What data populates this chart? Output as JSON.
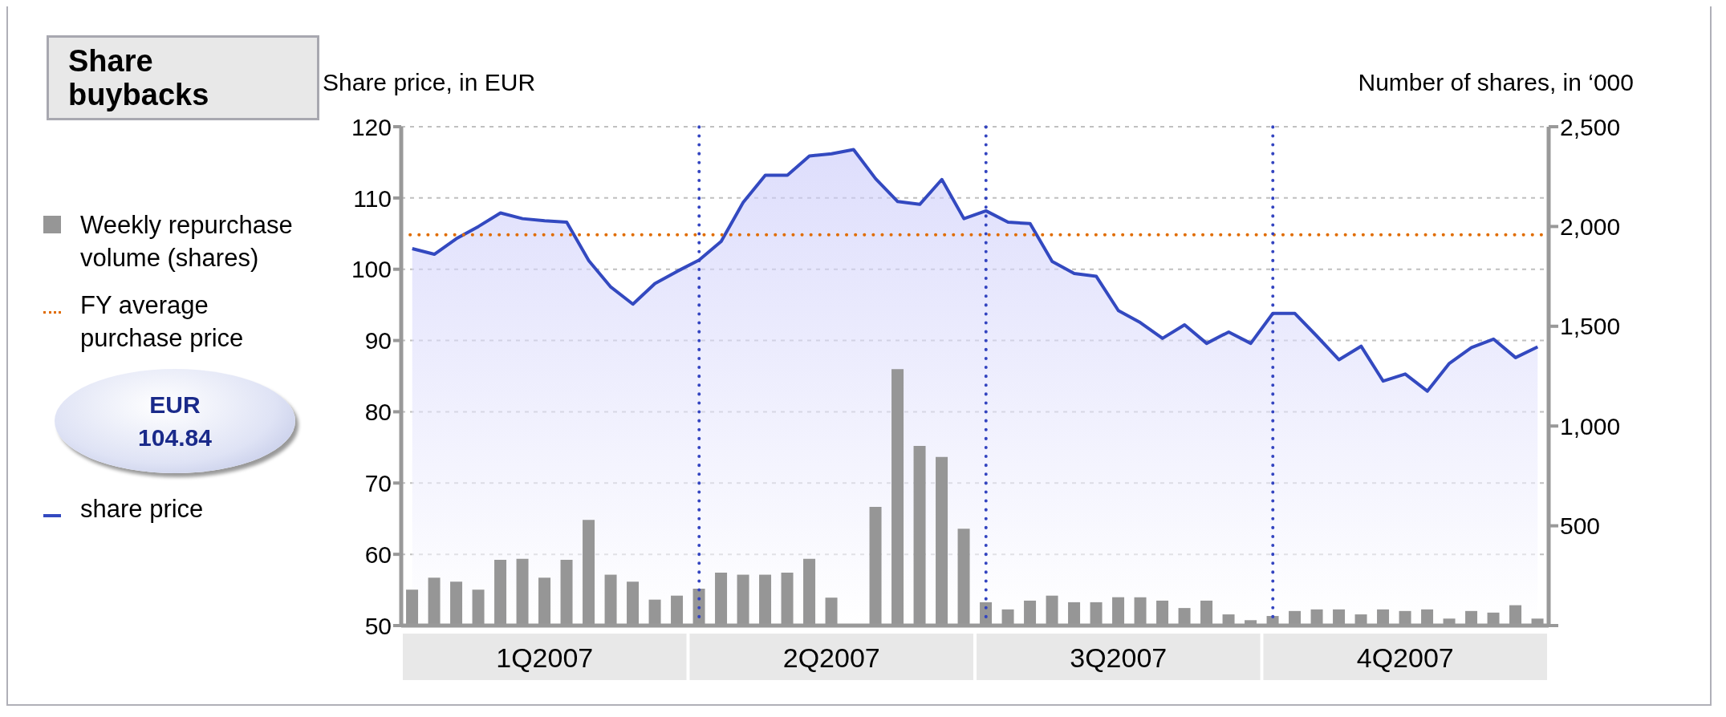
{
  "chart_data": {
    "type": "area",
    "title": "Share buybacks",
    "ylabel": "Share price, in EUR",
    "y2label": "Number of shares, in ‘000",
    "annotations": [
      "EUR 104.84"
    ],
    "categories": [
      null,
      null,
      null,
      null,
      null,
      null,
      "1Q2007",
      null,
      null,
      null,
      null,
      null,
      null,
      null,
      null,
      null,
      null,
      null,
      null,
      "2Q2007",
      null,
      null,
      null,
      null,
      null,
      null,
      null,
      null,
      null,
      null,
      null,
      null,
      "3Q2007",
      null,
      null,
      null,
      null,
      null,
      null,
      null,
      null,
      null,
      null,
      null,
      null,
      "4Q2007",
      null,
      null,
      null,
      null,
      null,
      null
    ],
    "ylim": [
      50,
      120
    ],
    "yticks": [
      50,
      60,
      70,
      80,
      90,
      100,
      110,
      120
    ],
    "y2lim": [
      0,
      2500
    ],
    "y2ticks": [
      {
        "value": 0,
        "label": null
      },
      {
        "value": 500,
        "label": "500"
      },
      {
        "value": 1000,
        "label": "1,000"
      },
      {
        "value": 1500,
        "label": "1,500"
      },
      {
        "value": 2000,
        "label": "2,000"
      },
      {
        "value": 2500,
        "label": "2,500"
      }
    ],
    "grid": true,
    "legend": "left",
    "ref_lines": [
      {
        "axis": "y",
        "value": 104.84,
        "label": "FY average purchase price",
        "color": "#e06c00",
        "line_style": "dotted"
      }
    ],
    "series": [
      {
        "name": "Weekly repurchase volume (shares)",
        "type": "bar",
        "axis": "y2",
        "color": "#969696",
        "values": [
          180,
          240,
          220,
          180,
          330,
          335,
          240,
          330,
          530,
          255,
          220,
          130,
          150,
          185,
          265,
          255,
          255,
          265,
          335,
          140,
          0,
          595,
          1285,
          900,
          845,
          485,
          117,
          81,
          125,
          150,
          117,
          117,
          142,
          142,
          125,
          88,
          125,
          56,
          27,
          48,
          73,
          81,
          81,
          56,
          81,
          73,
          81,
          35,
          73,
          65,
          102,
          35
        ]
      },
      {
        "name": "share price",
        "color": "#3349c0",
        "values": [
          102.9,
          102.1,
          104.3,
          106,
          107.9,
          107.1,
          106.8,
          106.6,
          101.2,
          97.5,
          95.1,
          98,
          99.7,
          101.3,
          103.9,
          109.4,
          113.2,
          113.2,
          115.9,
          116.2,
          116.8,
          112.7,
          109.5,
          109.1,
          112.6,
          107.1,
          108.2,
          106.6,
          106.4,
          101.1,
          99.4,
          99,
          94.2,
          92.5,
          90.3,
          92.2,
          89.6,
          91.2,
          89.6,
          93.8,
          93.8,
          90.6,
          87.3,
          89.2,
          84.3,
          85.3,
          82.9,
          86.8,
          89,
          90.2,
          87.6,
          89.1
        ]
      }
    ]
  }
}
